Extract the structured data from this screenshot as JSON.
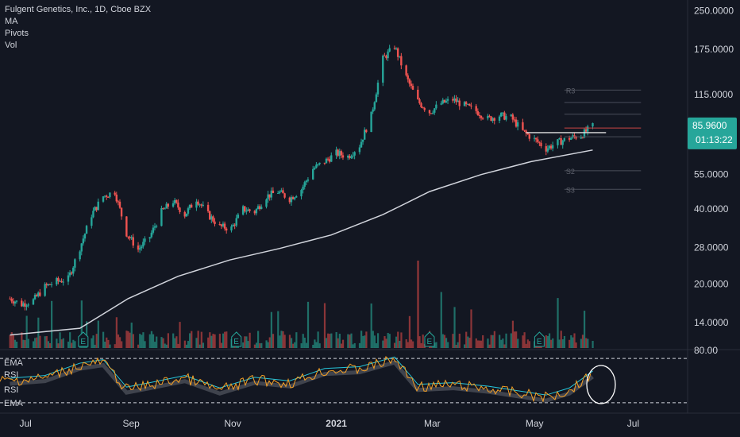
{
  "legend": {
    "title": "Fulgent Genetics, Inc., 1D, Cboe BZX",
    "items": [
      "MA",
      "Pivots",
      "Vol"
    ]
  },
  "price_badge": {
    "value": "85.9600",
    "countdown": "01:13:22"
  },
  "rsi_panel": {
    "labels": [
      "EMA",
      "RSI",
      "RSI",
      "EMA"
    ],
    "axis_label": "80.00"
  },
  "colors": {
    "background": "#131722",
    "up": "#26a69a",
    "down": "#ef5350",
    "ma": "#d1d4dc",
    "rsi": "#f7a125",
    "rsi_ema": "#26c6da",
    "badge": "#26a69a"
  },
  "chart_data": {
    "type": "candlestick",
    "title": "Fulgent Genetics, Inc., 1D, Cboe BZX",
    "y_scale": "log",
    "ylim": [
      11.5,
      260
    ],
    "y_ticks": [
      250,
      175,
      115,
      85.96,
      55,
      40,
      28,
      20,
      14
    ],
    "y_tick_labels": [
      "250.0000",
      "175.0000",
      "115.0000",
      "",
      "55.0000",
      "40.0000",
      "28.0000",
      "20.0000",
      "14.0000"
    ],
    "x_labels": [
      "Jul",
      "Sep",
      "Nov",
      "2021",
      "Mar",
      "May",
      "Jul"
    ],
    "last_price": 85.96,
    "close_path": [
      [
        "2020-06-22",
        17.5
      ],
      [
        "2020-06-29",
        16.6
      ],
      [
        "2020-07-06",
        17.2
      ],
      [
        "2020-07-13",
        19.5
      ],
      [
        "2020-07-20",
        20.5
      ],
      [
        "2020-07-27",
        21.0
      ],
      [
        "2020-08-03",
        28.0
      ],
      [
        "2020-08-10",
        38.0
      ],
      [
        "2020-08-17",
        45.0
      ],
      [
        "2020-08-24",
        47.0
      ],
      [
        "2020-08-31",
        32.0
      ],
      [
        "2020-09-07",
        27.5
      ],
      [
        "2020-09-14",
        31.0
      ],
      [
        "2020-09-21",
        39.0
      ],
      [
        "2020-09-28",
        43.0
      ],
      [
        "2020-10-05",
        38.0
      ],
      [
        "2020-10-12",
        44.0
      ],
      [
        "2020-10-19",
        38.0
      ],
      [
        "2020-10-26",
        34.0
      ],
      [
        "2020-11-02",
        33.5
      ],
      [
        "2020-11-09",
        40.0
      ],
      [
        "2020-11-16",
        39.0
      ],
      [
        "2020-11-23",
        45.0
      ],
      [
        "2020-11-30",
        47.0
      ],
      [
        "2020-12-07",
        44.0
      ],
      [
        "2020-12-14",
        48.0
      ],
      [
        "2020-12-21",
        58.0
      ],
      [
        "2020-12-28",
        62.0
      ],
      [
        "2021-01-04",
        67.0
      ],
      [
        "2021-01-11",
        65.0
      ],
      [
        "2021-01-18",
        72.0
      ],
      [
        "2021-01-25",
        95.0
      ],
      [
        "2021-02-01",
        160.0
      ],
      [
        "2021-02-08",
        180.0
      ],
      [
        "2021-02-15",
        135.0
      ],
      [
        "2021-02-22",
        108.0
      ],
      [
        "2021-03-01",
        98.0
      ],
      [
        "2021-03-08",
        106.0
      ],
      [
        "2021-03-15",
        110.0
      ],
      [
        "2021-03-22",
        104.0
      ],
      [
        "2021-03-29",
        99.0
      ],
      [
        "2021-04-05",
        92.0
      ],
      [
        "2021-04-12",
        95.0
      ],
      [
        "2021-04-19",
        93.0
      ],
      [
        "2021-04-26",
        82.0
      ],
      [
        "2021-05-03",
        76.0
      ],
      [
        "2021-05-10",
        70.0
      ],
      [
        "2021-05-17",
        74.0
      ],
      [
        "2021-05-24",
        77.0
      ],
      [
        "2021-05-31",
        79.0
      ],
      [
        "2021-06-07",
        85.96
      ]
    ],
    "moving_average": [
      [
        "2020-06-22",
        12.5
      ],
      [
        "2020-08-03",
        13.3
      ],
      [
        "2020-09-01",
        17.5
      ],
      [
        "2020-10-01",
        21.5
      ],
      [
        "2020-11-01",
        25.0
      ],
      [
        "2020-12-01",
        27.8
      ],
      [
        "2021-01-01",
        31.5
      ],
      [
        "2021-02-01",
        38.0
      ],
      [
        "2021-03-01",
        47.0
      ],
      [
        "2021-04-01",
        55.0
      ],
      [
        "2021-05-01",
        62.0
      ],
      [
        "2021-06-07",
        69.0
      ]
    ],
    "pivot_labels": [
      "R3",
      "S2",
      "S3"
    ],
    "volume_event_markers": [
      "E",
      "E",
      "E",
      "E",
      "E"
    ],
    "rsi": {
      "ylim": [
        20,
        90
      ],
      "upper_band": 80,
      "lower_band": 30,
      "path": [
        [
          "2020-06-22",
          55
        ],
        [
          "2020-07-13",
          58
        ],
        [
          "2020-08-03",
          72
        ],
        [
          "2020-08-17",
          76
        ],
        [
          "2020-08-31",
          45
        ],
        [
          "2020-09-14",
          50
        ],
        [
          "2020-10-05",
          58
        ],
        [
          "2020-10-26",
          44
        ],
        [
          "2020-11-16",
          56
        ],
        [
          "2020-12-07",
          52
        ],
        [
          "2020-12-28",
          66
        ],
        [
          "2021-01-18",
          68
        ],
        [
          "2021-02-08",
          79
        ],
        [
          "2021-02-22",
          48
        ],
        [
          "2021-03-15",
          50
        ],
        [
          "2021-04-05",
          46
        ],
        [
          "2021-04-26",
          40
        ],
        [
          "2021-05-10",
          36
        ],
        [
          "2021-05-24",
          44
        ],
        [
          "2021-06-07",
          63
        ]
      ]
    }
  }
}
